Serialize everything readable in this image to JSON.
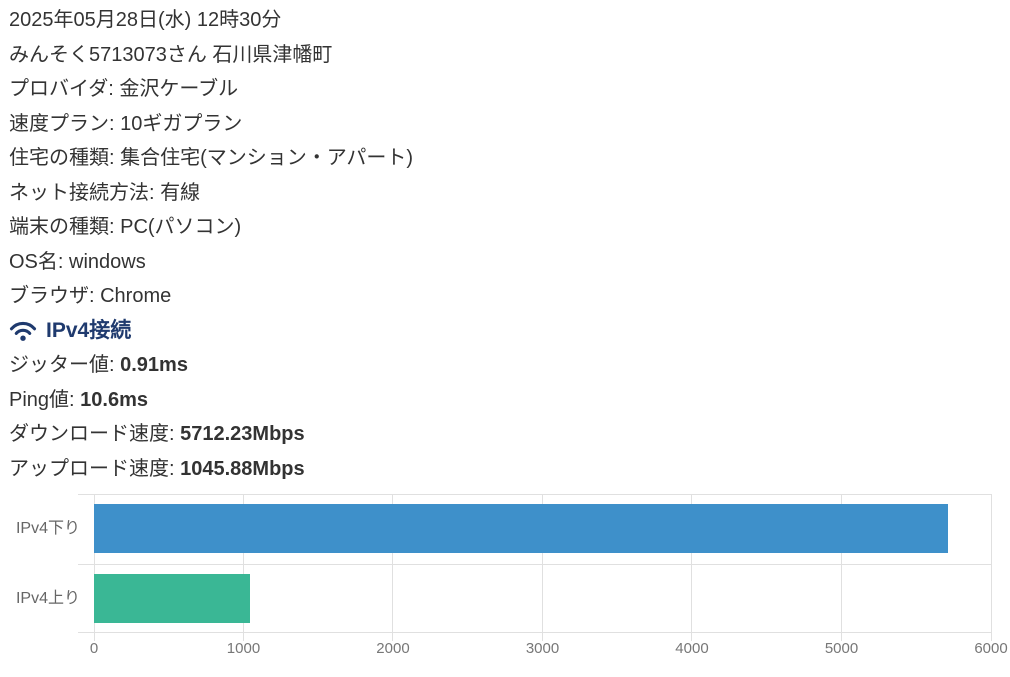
{
  "page": {
    "background": "#ffffff",
    "text_color": "#333333"
  },
  "report": {
    "datetime": "2025年05月28日(水) 12時30分",
    "user_location": "みんそく5713073さん 石川県津幡町",
    "fields": [
      {
        "text": "プロバイダ: 金沢ケーブル"
      },
      {
        "text": "速度プラン: 10ギガプラン"
      },
      {
        "text": "住宅の種類: 集合住宅(マンション・アパート)"
      },
      {
        "text": "ネット接続方法: 有線"
      },
      {
        "text": "端末の種類: PC(パソコン)"
      },
      {
        "text": "OS名: windows"
      },
      {
        "text": "ブラウザ: Chrome"
      }
    ],
    "section": {
      "icon": "wifi-icon",
      "title": "IPv4接続",
      "title_color": "#1f3a6e"
    },
    "metrics": [
      {
        "label": "ジッター値: ",
        "value": "0.91ms"
      },
      {
        "label": "Ping値: ",
        "value": "10.6ms"
      },
      {
        "label": "ダウンロード速度: ",
        "value": "5712.23Mbps"
      },
      {
        "label": "アップロード速度: ",
        "value": "1045.88Mbps"
      }
    ]
  },
  "chart_data": {
    "type": "bar",
    "orientation": "horizontal",
    "title": "",
    "categories": [
      "IPv4下り",
      "IPv4上り"
    ],
    "values": [
      5712.23,
      1045.88
    ],
    "unit": "Mbps",
    "bar_colors": [
      "#3e90ca",
      "#3ab795"
    ],
    "xlabel": "",
    "ylabel": "",
    "xlim": [
      0,
      6000
    ],
    "xticks": [
      0,
      1000,
      2000,
      3000,
      4000,
      5000,
      6000
    ],
    "grid": true,
    "grid_color": "#e0e0e0",
    "category_label_color": "#666666",
    "tick_label_color": "#777777",
    "legend": "none"
  }
}
